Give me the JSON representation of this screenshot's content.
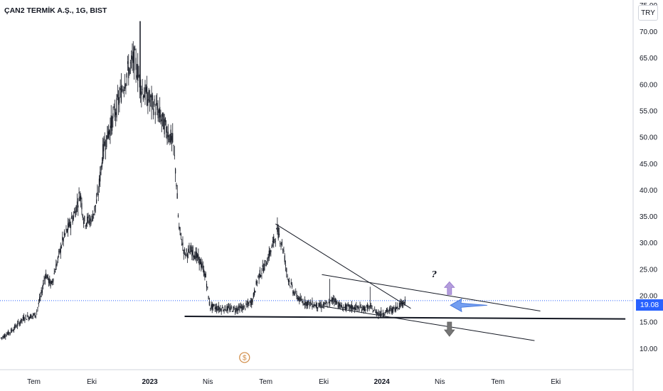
{
  "header": {
    "title": "ÇAN2 TERMİK A.Ş., 1G, BIST",
    "currency": "TRY"
  },
  "last_price": "19.08",
  "colors": {
    "candle": "#131722",
    "price_line": "#2962ff",
    "axis_line": "#d1d4dc",
    "arrow_up": "#b39ddb",
    "arrow_left": "#5b8def",
    "arrow_down": "#757575",
    "dollar": "#d08a43"
  },
  "chart_data": {
    "type": "candlestick",
    "title": "ÇAN2 TERMİK A.Ş., 1G, BIST",
    "y_axis": {
      "min": 6,
      "max": 76,
      "position": "right",
      "ticks": [
        10,
        15,
        20,
        25,
        30,
        35,
        40,
        45,
        50,
        55,
        60,
        65,
        70,
        75
      ],
      "tick_labels": [
        "10.00",
        "15.00",
        "20.00",
        "25.00",
        "30.00",
        "35.00",
        "40.00",
        "45.00",
        "50.00",
        "55.00",
        "60.00",
        "65.00",
        "70.00",
        "75.00"
      ]
    },
    "x_axis": {
      "labels": [
        {
          "label": "Tem",
          "x": 0.0,
          "bold": false
        },
        {
          "label": "Eki",
          "x": 3.0,
          "bold": false
        },
        {
          "label": "2023",
          "x": 6.0,
          "bold": true
        },
        {
          "label": "Nis",
          "x": 9.0,
          "bold": false
        },
        {
          "label": "Tem",
          "x": 12.0,
          "bold": false
        },
        {
          "label": "Eki",
          "x": 15.0,
          "bold": false
        },
        {
          "label": "2024",
          "x": 18.0,
          "bold": true
        },
        {
          "label": "Nis",
          "x": 21.0,
          "bold": false
        },
        {
          "label": "Tem",
          "x": 24.0,
          "bold": false
        },
        {
          "label": "Eki",
          "x": 27.0,
          "bold": false
        }
      ],
      "min": -1.75,
      "max": 31.0
    },
    "price_keypoints": [
      [
        -1.7,
        12.0
      ],
      [
        -1.2,
        13.2
      ],
      [
        -0.5,
        15.8
      ],
      [
        0.1,
        16.4
      ],
      [
        0.4,
        20.5
      ],
      [
        0.6,
        24.2
      ],
      [
        0.9,
        22.0
      ],
      [
        1.5,
        30.5
      ],
      [
        2.1,
        35.5
      ],
      [
        2.4,
        39.5
      ],
      [
        2.6,
        34.0
      ],
      [
        3.0,
        34.5
      ],
      [
        3.3,
        38.5
      ],
      [
        3.6,
        48.0
      ],
      [
        4.0,
        52.5
      ],
      [
        4.4,
        57.0
      ],
      [
        4.8,
        62.0
      ],
      [
        5.2,
        65.0
      ],
      [
        5.6,
        59.0
      ],
      [
        6.0,
        57.0
      ],
      [
        6.4,
        55.0
      ],
      [
        6.8,
        52.0
      ],
      [
        7.2,
        49.0
      ],
      [
        7.35,
        43.0
      ],
      [
        7.5,
        33.0
      ],
      [
        7.8,
        28.0
      ],
      [
        8.2,
        28.5
      ],
      [
        8.6,
        26.5
      ],
      [
        8.9,
        23.5
      ],
      [
        9.1,
        18.0
      ],
      [
        9.6,
        17.6
      ],
      [
        10.4,
        17.5
      ],
      [
        10.9,
        17.8
      ],
      [
        11.3,
        19.0
      ],
      [
        11.6,
        23.5
      ],
      [
        12.0,
        26.0
      ],
      [
        12.3,
        29.0
      ],
      [
        12.6,
        32.5
      ],
      [
        12.9,
        29.0
      ],
      [
        13.1,
        24.0
      ],
      [
        13.4,
        21.0
      ],
      [
        13.8,
        19.0
      ],
      [
        14.3,
        18.5
      ],
      [
        14.8,
        18.0
      ],
      [
        15.3,
        18.5
      ],
      [
        15.5,
        19.5
      ],
      [
        15.9,
        17.8
      ],
      [
        16.5,
        17.8
      ],
      [
        17.0,
        17.6
      ],
      [
        17.4,
        17.8
      ],
      [
        17.6,
        17.2
      ],
      [
        17.9,
        16.6
      ],
      [
        18.2,
        17.0
      ],
      [
        18.6,
        17.4
      ],
      [
        18.95,
        18.4
      ],
      [
        19.2,
        19.08
      ]
    ],
    "price_spikes": [
      [
        5.5,
        72.0
      ],
      [
        15.3,
        23.2
      ],
      [
        17.4,
        21.7
      ]
    ],
    "drawings": [
      {
        "name": "descending-trendline",
        "from": [
          12.5,
          33.6
        ],
        "to": [
          19.5,
          17.6
        ],
        "width": 1
      },
      {
        "name": "channel-upper-line",
        "from": [
          14.9,
          24.0
        ],
        "to": [
          26.2,
          17.1
        ],
        "width": 1
      },
      {
        "name": "channel-lower-line",
        "from": [
          15.0,
          18.0
        ],
        "to": [
          25.9,
          11.5
        ],
        "width": 1
      },
      {
        "name": "horizontal-support-line",
        "from": [
          7.8,
          16.1
        ],
        "to": [
          30.6,
          15.6
        ],
        "width": 2
      }
    ],
    "annotations": [
      {
        "name": "question-mark",
        "text": "?",
        "x": 20.7,
        "y": 23.5
      },
      {
        "name": "arrow-up",
        "x": 21.5,
        "y": 21.3,
        "direction": "up"
      },
      {
        "name": "arrow-left",
        "x": 22.5,
        "y": 18.2,
        "direction": "left"
      },
      {
        "name": "arrow-down",
        "x": 21.5,
        "y": 13.8,
        "direction": "down"
      },
      {
        "name": "dividend-marker",
        "text": "$",
        "x": 10.9,
        "y": 8.3
      }
    ],
    "last_price": 19.08
  }
}
